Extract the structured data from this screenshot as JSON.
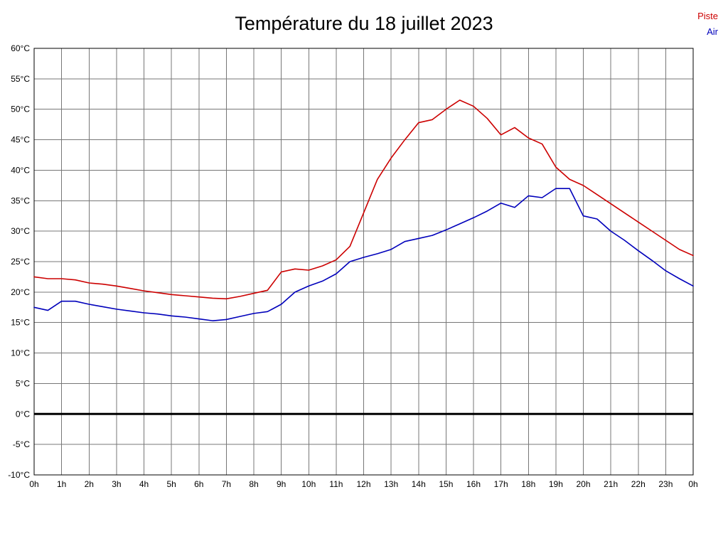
{
  "chart_data": {
    "type": "line",
    "title": "Température du 18 juillet 2023",
    "xlabel": "",
    "ylabel": "",
    "xlim": [
      0,
      24
    ],
    "ylim": [
      -10,
      60
    ],
    "grid": true,
    "legend_position": "top-right",
    "colors": {
      "piste": "#cc0000",
      "air": "#0000bb",
      "grid": "#777777",
      "frame": "#000000",
      "zero_line": "#000000",
      "text": "#000000",
      "background": "#ffffff"
    },
    "x_tick_values": [
      0,
      1,
      2,
      3,
      4,
      5,
      6,
      7,
      8,
      9,
      10,
      11,
      12,
      13,
      14,
      15,
      16,
      17,
      18,
      19,
      20,
      21,
      22,
      23,
      24
    ],
    "x_tick_labels": [
      "0h",
      "1h",
      "2h",
      "3h",
      "4h",
      "5h",
      "6h",
      "7h",
      "8h",
      "9h",
      "10h",
      "11h",
      "12h",
      "13h",
      "14h",
      "15h",
      "16h",
      "17h",
      "18h",
      "19h",
      "20h",
      "21h",
      "22h",
      "23h",
      "0h"
    ],
    "y_tick_values": [
      60,
      55,
      50,
      45,
      40,
      35,
      30,
      25,
      20,
      15,
      10,
      5,
      0,
      -5,
      -10
    ],
    "y_tick_labels": [
      "60°C",
      "55°C",
      "50°C",
      "45°C",
      "40°C",
      "35°C",
      "30°C",
      "25°C",
      "20°C",
      "15°C",
      "10°C",
      "5°C",
      "0°C",
      "-5°C",
      "-10°C"
    ],
    "zero_line": {
      "y": 0,
      "width": 3
    },
    "x": [
      0,
      0.5,
      1,
      1.5,
      2,
      2.5,
      3,
      3.5,
      4,
      4.5,
      5,
      5.5,
      6,
      6.5,
      7,
      7.5,
      8,
      8.5,
      9,
      9.5,
      10,
      10.5,
      11,
      11.5,
      12,
      12.5,
      13,
      13.5,
      14,
      14.5,
      15,
      15.5,
      16,
      16.5,
      17,
      17.5,
      18,
      18.5,
      19,
      19.5,
      20,
      20.5,
      21,
      21.5,
      22,
      22.5,
      23,
      23.5,
      24
    ],
    "series": [
      {
        "name": "Piste",
        "color": "#cc0000",
        "values": [
          22.5,
          22.2,
          22.2,
          22.0,
          21.5,
          21.3,
          21.0,
          20.6,
          20.2,
          19.9,
          19.6,
          19.4,
          19.2,
          19.0,
          18.9,
          19.3,
          19.8,
          20.3,
          23.3,
          23.8,
          23.6,
          24.3,
          25.3,
          27.5,
          33.0,
          38.5,
          42.0,
          45.0,
          47.8,
          48.3,
          50.0,
          51.5,
          50.5,
          48.5,
          45.8,
          47.0,
          45.3,
          44.3,
          40.5,
          38.5,
          37.5,
          36.0,
          34.5,
          33.0,
          31.5,
          30.0,
          28.5,
          27.0,
          26.0
        ]
      },
      {
        "name": "Air",
        "color": "#0000bb",
        "values": [
          17.5,
          17.0,
          18.5,
          18.5,
          18.0,
          17.6,
          17.2,
          16.9,
          16.6,
          16.4,
          16.1,
          15.9,
          15.6,
          15.3,
          15.5,
          16.0,
          16.5,
          16.8,
          18.0,
          20.0,
          21.0,
          21.8,
          23.0,
          25.0,
          25.7,
          26.3,
          27.0,
          28.3,
          28.8,
          29.3,
          30.2,
          31.2,
          32.2,
          33.3,
          34.6,
          33.9,
          35.8,
          35.5,
          37.0,
          37.0,
          32.5,
          32.0,
          30.0,
          28.5,
          26.8,
          25.2,
          23.5,
          22.2,
          21.0
        ]
      }
    ]
  }
}
